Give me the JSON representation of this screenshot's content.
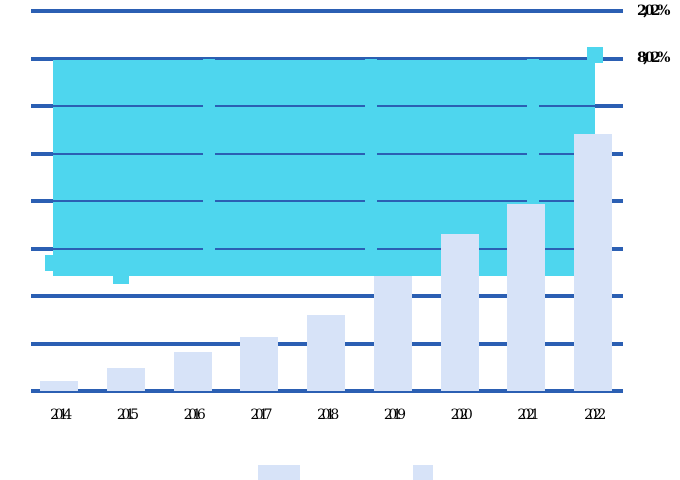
{
  "chart_data": {
    "type": "bar",
    "title": "",
    "xlabel": "",
    "ylabel": "",
    "categories": [
      "2014",
      "2015",
      "2016",
      "2017",
      "2018",
      "2019",
      "2020",
      "2021",
      "2022"
    ],
    "series": [
      {
        "name": "bars",
        "type": "bar",
        "color": "#d7e3f8",
        "values": [
          0.21,
          0.48,
          0.82,
          1.14,
          1.6,
          2.42,
          3.31,
          3.94,
          5.41
        ]
      },
      {
        "name": "band",
        "type": "band",
        "color": "#4ed6ee",
        "top": 7.0,
        "bottom": 2.42,
        "markers": [
          {
            "index": 0,
            "value": 2.69
          },
          {
            "index": 1,
            "value": 2.42
          },
          {
            "index": 8,
            "value": 7.08
          }
        ]
      }
    ],
    "right_axis_labels": [
      {
        "text": "2,02%",
        "gridline_from_top": 0
      },
      {
        "text": "8,02%",
        "gridline_from_top": 1
      }
    ],
    "gridlines": {
      "count": 9,
      "color": "#2b5fb3",
      "orientation": "horizontal"
    },
    "ylim": [
      0,
      8
    ],
    "legend_position": "bottom"
  },
  "legend": {
    "swatch_color": "#d7e3f8",
    "items": [
      {
        "label": ""
      },
      {
        "label": ""
      }
    ]
  },
  "colors": {
    "bar": "#d7e3f8",
    "band": "#4ed6ee",
    "grid": "#2b5fb3",
    "text": "#000000",
    "background": "#ffffff"
  }
}
